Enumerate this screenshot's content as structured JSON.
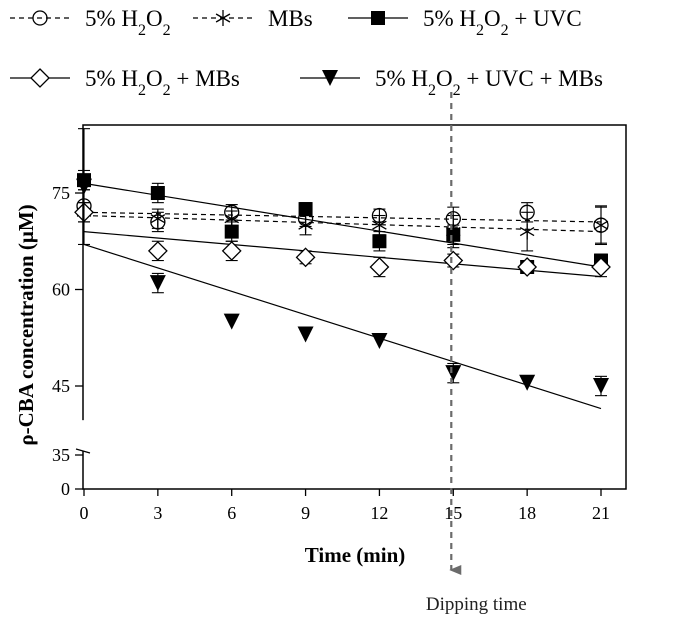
{
  "chart_data": {
    "type": "scatter",
    "title": "",
    "xlabel": "Time (min)",
    "ylabel": "ρ-CBA concentration (μM)",
    "xlim": [
      0,
      22
    ],
    "ylim": [
      0,
      85
    ],
    "y_axis_break": [
      35,
      40
    ],
    "xticks": [
      0,
      3,
      6,
      9,
      12,
      15,
      18,
      21
    ],
    "yticks": [
      0,
      35,
      45,
      60,
      75
    ],
    "x": [
      0,
      3,
      6,
      9,
      12,
      15,
      18,
      21
    ],
    "series": [
      {
        "key": "h2o2",
        "name": "5% H2O2",
        "label_parts": [
          "5% H",
          "2",
          "O",
          "2"
        ],
        "marker": "open-circle",
        "line_style": "dashed",
        "values": [
          73,
          70.5,
          72,
          71,
          71.5,
          71,
          72,
          70
        ],
        "errors": [
          2.5,
          1.5,
          1.2,
          1.2,
          1.0,
          1.8,
          1.5,
          2.8
        ],
        "fit": {
          "y_start": 72,
          "y_end": 70.5
        }
      },
      {
        "key": "mbs",
        "name": "MBs",
        "label_parts": [
          "MBs"
        ],
        "marker": "star",
        "line_style": "dashed",
        "values": [
          72,
          71,
          71,
          70,
          70,
          69,
          69,
          70
        ],
        "errors": [
          1.5,
          1.5,
          1.2,
          1.5,
          1.5,
          2.5,
          3.0,
          3.0
        ],
        "fit": {
          "y_start": 71.5,
          "y_end": 69
        }
      },
      {
        "key": "h2o2_uvc",
        "name": "5% H2O2 + UVC",
        "label_parts": [
          "5% H",
          "2",
          "O",
          "2",
          " + UVC"
        ],
        "marker": "filled-square",
        "line_style": "solid",
        "values": [
          77,
          75,
          69,
          72.5,
          67.5,
          68.5,
          63.5,
          64.5
        ],
        "errors": [
          1.5,
          1.5,
          1.5,
          1.0,
          1.5,
          1.5,
          1.0,
          1.0
        ],
        "fit": {
          "y_start": 76.5,
          "y_end": 63.5
        }
      },
      {
        "key": "h2o2_mbs",
        "name": "5% H2O2 + MBs",
        "label_parts": [
          "5% H",
          "2",
          "O",
          "2",
          "  + MBs"
        ],
        "marker": "open-diamond",
        "line_style": "solid",
        "values": [
          72,
          66,
          66,
          65,
          63.5,
          64.5,
          63.5,
          63.5
        ],
        "errors": [
          1.5,
          1.5,
          1.5,
          1.0,
          1.5,
          1.0,
          1.0,
          1.5
        ],
        "fit": {
          "y_start": 69,
          "y_end": 62
        }
      },
      {
        "key": "h2o2_uvc_mbs",
        "name": "5% H2O2 + UVC + MBs",
        "label_parts": [
          "5% H",
          "2",
          "O",
          "2",
          " + UVC + MBs"
        ],
        "marker": "filled-triangle-down",
        "line_style": "solid",
        "values": [
          76,
          61,
          55,
          53,
          52,
          47,
          45.5,
          45
        ],
        "errors": [
          9,
          1.5,
          0,
          0,
          0,
          1.5,
          0,
          1.5
        ],
        "fit": {
          "y_start": 67,
          "y_end": 41.5
        }
      }
    ],
    "annotations": [
      {
        "text": "Dipping time",
        "x": 15,
        "style": "dashed-arrow-down"
      }
    ]
  }
}
